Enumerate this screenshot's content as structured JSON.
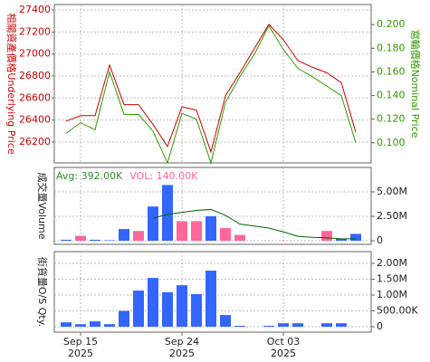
{
  "chart_data": [
    {
      "type": "line",
      "ylabel": "相關資產價格Underlying Price",
      "y2label": "窩輪價格Nominal Price",
      "categories": [
        null,
        "Sep 15",
        null,
        null,
        null,
        null,
        null,
        null,
        "Sep 24",
        null,
        null,
        null,
        null,
        null,
        null,
        "Oct 03",
        null,
        null,
        null,
        null,
        null
      ],
      "x_sublabels": [
        null,
        "2025",
        null,
        null,
        null,
        null,
        null,
        null,
        "2025",
        null,
        null,
        null,
        null,
        null,
        null,
        "2025",
        null,
        null,
        null,
        null,
        null
      ],
      "ylim": [
        26010,
        27450
      ],
      "yticks": [
        26200,
        26400,
        26600,
        26800,
        27000,
        27200,
        27400
      ],
      "y2lim": [
        0.083,
        0.217
      ],
      "y2ticks": [
        {
          "value": 0.1,
          "label": "0.100"
        },
        {
          "value": 0.12,
          "label": "0.120"
        },
        {
          "value": 0.14,
          "label": "0.140"
        },
        {
          "value": 0.16,
          "label": "0.160"
        },
        {
          "value": 0.18,
          "label": "0.180"
        },
        {
          "value": 0.2,
          "label": "0.200"
        }
      ],
      "grid": true,
      "series": [
        {
          "color": "#cc0000",
          "values": [
            26390,
            26440,
            26440,
            26900,
            26540,
            26540,
            26360,
            26160,
            26520,
            26490,
            26110,
            26620,
            26830,
            27050,
            27270,
            27130,
            26940,
            26880,
            26830,
            26740,
            26290
          ]
        },
        {
          "color": "#339900",
          "axis": "y2",
          "values": [
            0.108,
            0.117,
            0.111,
            0.16,
            0.124,
            0.124,
            0.11,
            0.083,
            0.125,
            0.12,
            0.083,
            0.134,
            0.156,
            0.175,
            0.199,
            0.179,
            0.163,
            0.156,
            0.148,
            0.14,
            0.1
          ]
        }
      ]
    },
    {
      "type": "bar",
      "ylabel": "成交量Volume",
      "annotations": [
        {
          "text": "Avg: 392.00K",
          "color": "#338833"
        },
        {
          "text": "VOL: 140.00K",
          "color": "#ff6699"
        }
      ],
      "ylim": [
        -370000,
        7500000
      ],
      "yticks": [
        0,
        {
          "value": 2500000,
          "label": "2.50M"
        },
        {
          "value": 5000000,
          "label": "5.00M"
        }
      ],
      "grid": true,
      "series": [
        {
          "colors": [
            "#3366ff",
            "#ff6699",
            "#3366ff",
            "#3366ff",
            "#3366ff",
            "#ff6699",
            "#3366ff",
            "#3366ff",
            "#ff6699",
            "#ff6699",
            "#3366ff",
            "#ff6699",
            "#ff6699",
            "#3366ff",
            "#3366ff",
            "#ff6699",
            "#3366ff",
            "#3366ff",
            "#ff6699",
            "#3366ff",
            "#3366ff"
          ],
          "values": [
            100000,
            500000,
            100000,
            50000,
            1200000,
            1000000,
            3500000,
            5700000,
            2000000,
            2000000,
            2500000,
            1300000,
            600000,
            0,
            0,
            20000,
            0,
            0,
            1000000,
            200000,
            700000
          ]
        },
        {
          "type": "line",
          "color": "#006600",
          "values": [
            null,
            null,
            null,
            null,
            null,
            null,
            2300000,
            2700000,
            2900000,
            3100000,
            3200000,
            2600000,
            1700000,
            1500000,
            1300000,
            900000,
            450000,
            350000,
            300000,
            200000,
            200000
          ]
        }
      ]
    },
    {
      "type": "bar",
      "ylabel": "街貨量O/S Qty.",
      "ylim": [
        -170000,
        2370000
      ],
      "yticks": [
        0,
        {
          "value": 500000,
          "label": "500.00K"
        },
        {
          "value": 1000000,
          "label": "1.00M"
        },
        {
          "value": 1500000,
          "label": "1.50M"
        },
        {
          "value": 2000000,
          "label": "2.00M"
        }
      ],
      "grid": true,
      "series": [
        {
          "color": "#3366ff",
          "values": [
            140000,
            80000,
            170000,
            80000,
            500000,
            1140000,
            1540000,
            1090000,
            1310000,
            1030000,
            1770000,
            370000,
            30000,
            0,
            30000,
            110000,
            110000,
            0,
            110000,
            110000,
            0
          ]
        }
      ]
    }
  ]
}
